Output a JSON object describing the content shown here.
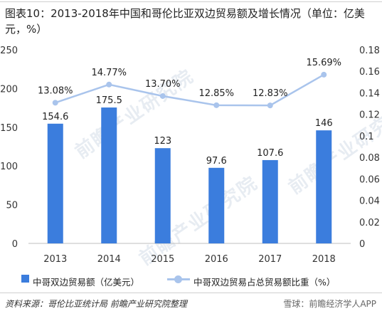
{
  "title": "图表10：2013-2018年中国和哥伦比亚双边贸易额及增长情况（单位：亿美元，%）",
  "chart_data": {
    "type": "bar",
    "categories": [
      "2013",
      "2014",
      "2015",
      "2016",
      "2017",
      "2018"
    ],
    "series": [
      {
        "name": "中哥双边贸易额（亿美元）",
        "kind": "bar",
        "axis": "left",
        "color": "#3b7ddd",
        "values": [
          154.6,
          175.5,
          123,
          97.6,
          107.6,
          146
        ],
        "labels": [
          "154.6",
          "175.5",
          "123",
          "97.6",
          "107.6",
          "146"
        ]
      },
      {
        "name": "中哥双边贸易占总贸易额比重（%）",
        "kind": "line",
        "axis": "right",
        "color": "#a9c4ec",
        "values": [
          0.1308,
          0.1477,
          0.137,
          0.1285,
          0.1283,
          0.1569
        ],
        "labels": [
          "13.08%",
          "14.77%",
          "13.70%",
          "12.85%",
          "12.83%",
          "15.69%"
        ]
      }
    ],
    "left_axis": {
      "min": 0,
      "max": 250,
      "ticks": [
        "0",
        "50",
        "100",
        "150",
        "200",
        "250"
      ]
    },
    "right_axis": {
      "min": 0,
      "max": 0.18,
      "ticks": [
        "0",
        "0.02",
        "0.04",
        "0.06",
        "0.08",
        "0.1",
        "0.12",
        "0.14",
        "0.16",
        "0.18"
      ]
    },
    "grid": false,
    "legend": "bottom"
  },
  "source": "资料来源：哥伦比亚统计局 前瞻产业研究院整理",
  "watermarks": [
    "前瞻产业研究院",
    "前瞻产业研究院",
    "前瞻产业研究院"
  ],
  "bottom_watermark": "雪球：前瞻经济学人APP"
}
